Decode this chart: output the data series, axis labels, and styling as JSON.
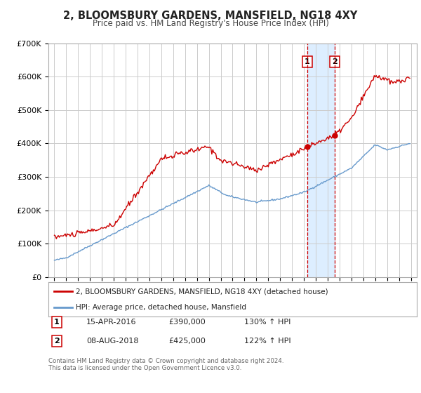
{
  "title": "2, BLOOMSBURY GARDENS, MANSFIELD, NG18 4XY",
  "subtitle": "Price paid vs. HM Land Registry's House Price Index (HPI)",
  "red_label": "2, BLOOMSBURY GARDENS, MANSFIELD, NG18 4XY (detached house)",
  "blue_label": "HPI: Average price, detached house, Mansfield",
  "transaction1_date": "15-APR-2016",
  "transaction1_price": 390000,
  "transaction1_hpi": "130% ↑ HPI",
  "transaction2_date": "08-AUG-2018",
  "transaction2_price": 425000,
  "transaction2_hpi": "122% ↑ HPI",
  "footer1": "Contains HM Land Registry data © Crown copyright and database right 2024.",
  "footer2": "This data is licensed under the Open Government Licence v3.0.",
  "red_color": "#cc0000",
  "blue_color": "#6699cc",
  "shade_color": "#ddeeff",
  "grid_color": "#cccccc",
  "bg_color": "#ffffff",
  "ylim": [
    0,
    700000
  ],
  "yticks": [
    0,
    100000,
    200000,
    300000,
    400000,
    500000,
    600000,
    700000
  ],
  "ytick_labels": [
    "£0",
    "£100K",
    "£200K",
    "£300K",
    "£400K",
    "£500K",
    "£600K",
    "£700K"
  ],
  "xlim_start": 1994.5,
  "xlim_end": 2025.5,
  "transaction1_x": 2016.29,
  "transaction2_x": 2018.6,
  "transaction1_y": 390000,
  "transaction2_y": 425000
}
